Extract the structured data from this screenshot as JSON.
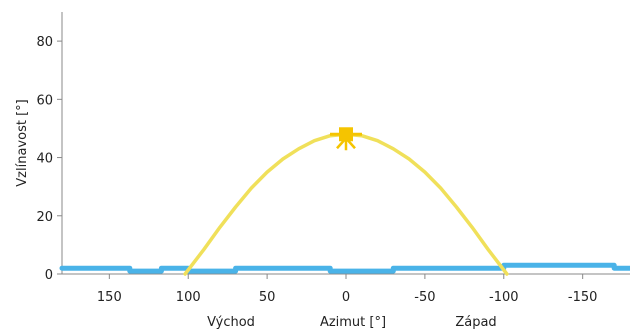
{
  "chart_data": {
    "type": "line",
    "xlabel": "Azimut [°]",
    "ylabel": "Vzlínavost [°]",
    "east_label": "Východ",
    "west_label": "Západ",
    "xlim": [
      180,
      -180
    ],
    "ylim": [
      0,
      90
    ],
    "xticks": [
      150,
      100,
      50,
      0,
      -50,
      -100,
      -150
    ],
    "yticks": [
      0,
      20,
      40,
      60,
      80
    ],
    "grid": false,
    "series": [
      {
        "kind": "sun-path",
        "color": "#f0e05a",
        "x": [
          102,
          90,
          80,
          70,
          60,
          50,
          40,
          30,
          20,
          10,
          0,
          -10,
          -20,
          -30,
          -40,
          -50,
          -60,
          -70,
          -80,
          -90,
          -102
        ],
        "y": [
          0,
          8.5,
          16,
          23,
          29.5,
          35,
          39.5,
          43,
          45.8,
          47.5,
          48,
          47.5,
          45.8,
          43,
          39.5,
          35,
          29.5,
          23,
          16,
          8.5,
          0
        ]
      },
      {
        "kind": "horizon",
        "color": "#4ab3e8",
        "x": [
          180,
          137,
          137,
          117,
          117,
          100,
          100,
          70,
          70,
          10,
          10,
          -30,
          -30,
          -100,
          -100,
          -170,
          -170,
          -180
        ],
        "y": [
          2,
          2,
          1,
          1,
          2,
          2,
          1,
          1,
          2,
          2,
          1,
          1,
          2,
          2,
          3,
          3,
          2,
          2
        ]
      }
    ],
    "sun_marker": {
      "azimuth": 0,
      "elevation": 48,
      "color": "#f5c400"
    }
  }
}
